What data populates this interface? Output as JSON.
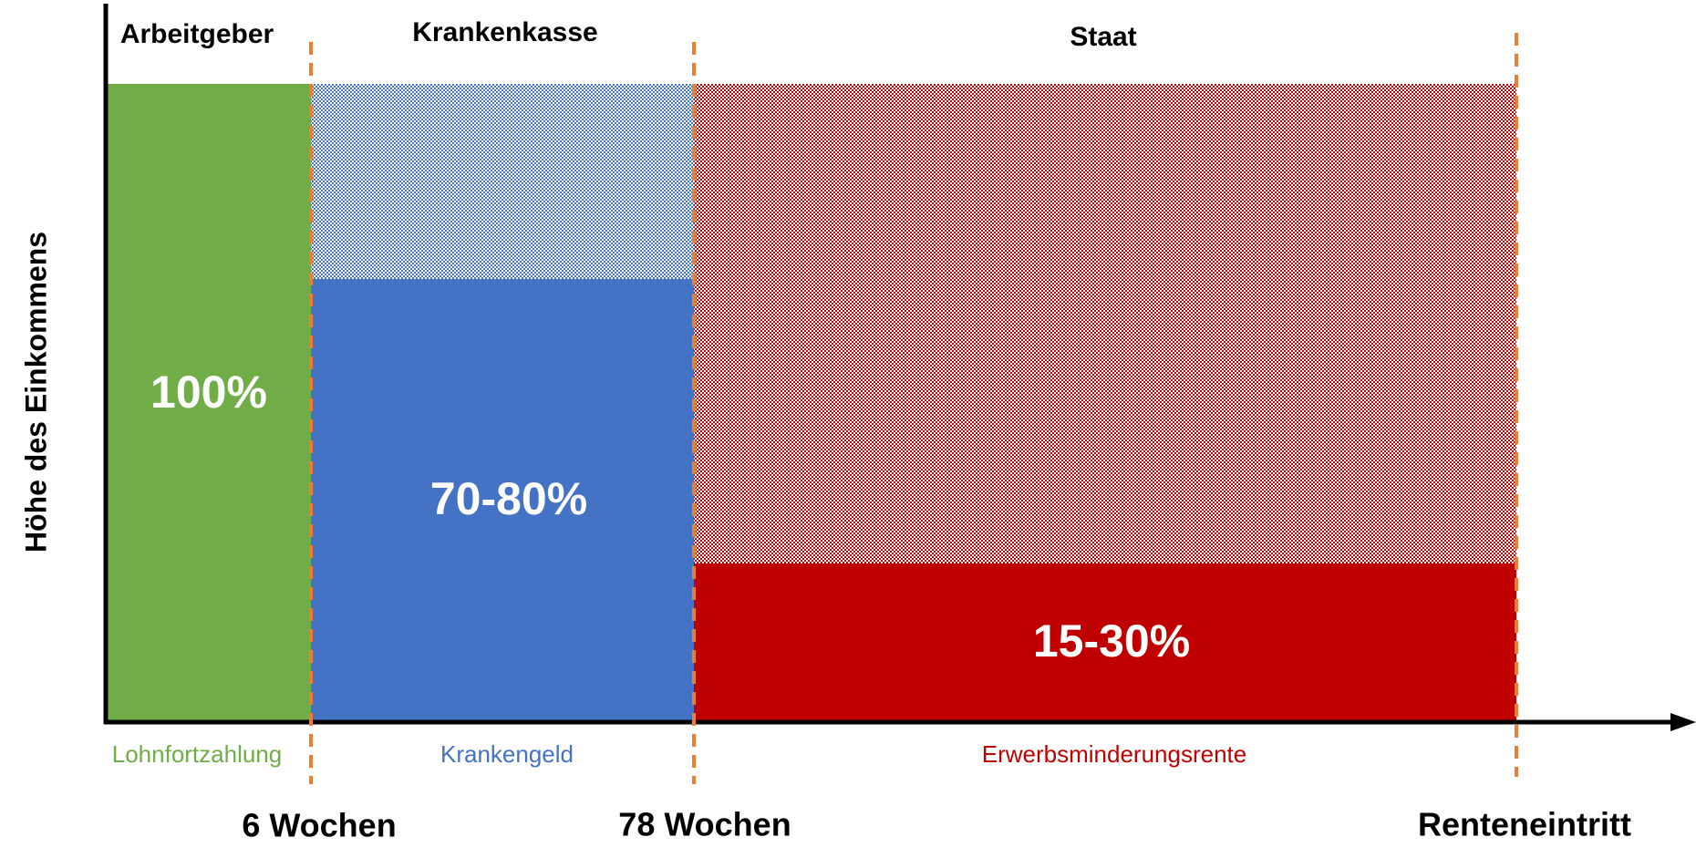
{
  "header": {
    "y_axis_label": "Höhe des Einkommens"
  },
  "payers": [
    "Arbeitgeber",
    "Krankenkasse",
    "Staat"
  ],
  "segments": [
    {
      "share": "100%",
      "benefit": "Lohnfortzahlung"
    },
    {
      "share": "70-80%",
      "benefit": "Krankengeld"
    },
    {
      "share": "15-30%",
      "benefit": "Erwerbsminderungsrente"
    }
  ],
  "milestones": [
    "6 Wochen",
    "78 Wochen",
    "Renteneintritt"
  ]
}
